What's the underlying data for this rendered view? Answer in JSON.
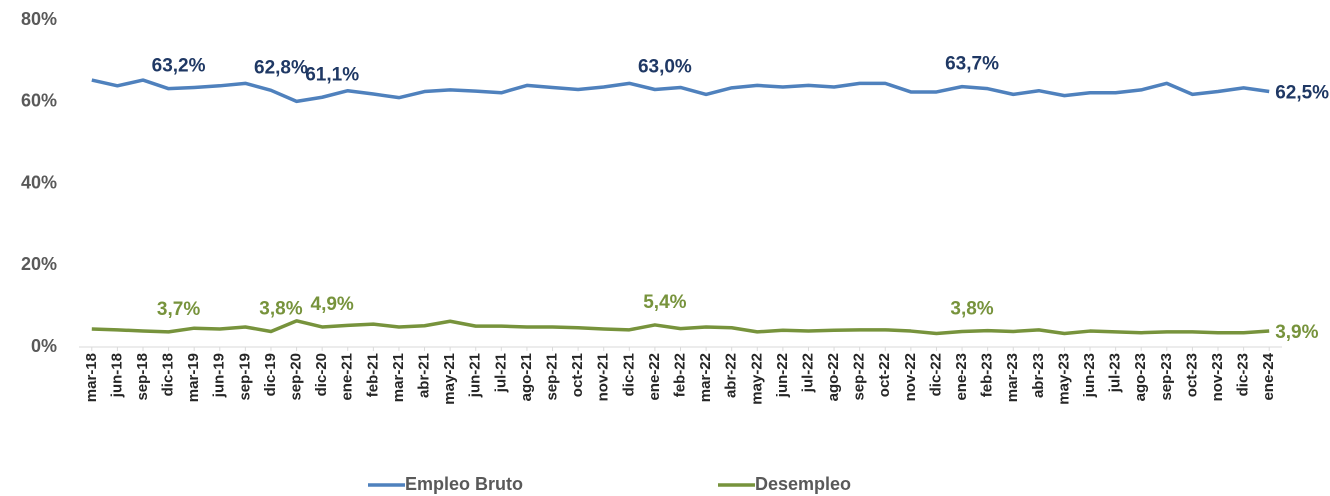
{
  "chart_data": {
    "type": "line",
    "categories": [
      "mar-18",
      "jun-18",
      "sep-18",
      "dic-18",
      "mar-19",
      "jun-19",
      "sep-19",
      "dic-19",
      "sep-20",
      "dic-20",
      "ene-21",
      "feb-21",
      "mar-21",
      "abr-21",
      "may-21",
      "jun-21",
      "jul-21",
      "ago-21",
      "sep-21",
      "oct-21",
      "nov-21",
      "dic-21",
      "ene-22",
      "feb-22",
      "mar-22",
      "abr-22",
      "may-22",
      "jun-22",
      "jul-22",
      "ago-22",
      "sep-22",
      "oct-22",
      "nov-22",
      "dic-22",
      "ene-23",
      "feb-23",
      "mar-23",
      "abr-23",
      "may-23",
      "jun-23",
      "jul-23",
      "ago-23",
      "sep-23",
      "oct-23",
      "nov-23",
      "dic-23",
      "ene-24"
    ],
    "series": [
      {
        "name": "Empleo Bruto",
        "color": "#4f81bd",
        "label_color": "#1f3864",
        "values": [
          65.3,
          63.9,
          65.3,
          63.2,
          63.5,
          63.9,
          64.5,
          62.8,
          60.1,
          61.1,
          62.7,
          61.9,
          61.0,
          62.5,
          62.9,
          62.6,
          62.2,
          64.0,
          63.5,
          63.0,
          63.6,
          64.5,
          63.0,
          63.5,
          61.8,
          63.4,
          64.0,
          63.6,
          64.0,
          63.6,
          64.5,
          64.5,
          62.4,
          62.4,
          63.7,
          63.2,
          61.8,
          62.7,
          61.5,
          62.2,
          62.2,
          62.9,
          64.5,
          61.8,
          62.5,
          63.4,
          62.5
        ],
        "value_labels": [
          null,
          null,
          null,
          "63,2%",
          null,
          null,
          null,
          "62,8%",
          null,
          "61,1%",
          null,
          null,
          null,
          null,
          null,
          null,
          null,
          null,
          null,
          null,
          null,
          null,
          "63,0%",
          null,
          null,
          null,
          null,
          null,
          null,
          null,
          null,
          null,
          null,
          null,
          "63,7%",
          null,
          null,
          null,
          null,
          null,
          null,
          null,
          null,
          null,
          null,
          null,
          "62,5%"
        ]
      },
      {
        "name": "Desempleo",
        "color": "#77933c",
        "label_color": "#77933c",
        "values": [
          4.4,
          4.2,
          3.9,
          3.7,
          4.6,
          4.4,
          4.9,
          3.8,
          6.4,
          4.9,
          5.3,
          5.6,
          4.9,
          5.2,
          6.3,
          5.1,
          5.1,
          4.9,
          4.9,
          4.7,
          4.4,
          4.2,
          5.4,
          4.5,
          4.9,
          4.7,
          3.7,
          4.1,
          3.9,
          4.1,
          4.2,
          4.2,
          3.9,
          3.3,
          3.8,
          4.0,
          3.8,
          4.2,
          3.3,
          3.9,
          3.7,
          3.5,
          3.7,
          3.7,
          3.5,
          3.5,
          3.9
        ],
        "value_labels": [
          null,
          null,
          null,
          "3,7%",
          null,
          null,
          null,
          "3,8%",
          null,
          "4,9%",
          null,
          null,
          null,
          null,
          null,
          null,
          null,
          null,
          null,
          null,
          null,
          null,
          "5,4%",
          null,
          null,
          null,
          null,
          null,
          null,
          null,
          null,
          null,
          null,
          null,
          "3,8%",
          null,
          null,
          null,
          null,
          null,
          null,
          null,
          null,
          null,
          null,
          null,
          "3,9%"
        ]
      }
    ],
    "ylim": [
      0,
      80
    ],
    "yticks": [
      {
        "value": 0,
        "label": "0%"
      },
      {
        "value": 20,
        "label": "20%"
      },
      {
        "value": 40,
        "label": "40%"
      },
      {
        "value": 60,
        "label": "60%"
      },
      {
        "value": 80,
        "label": "80%"
      }
    ],
    "grid": false,
    "legend": "bottom"
  }
}
